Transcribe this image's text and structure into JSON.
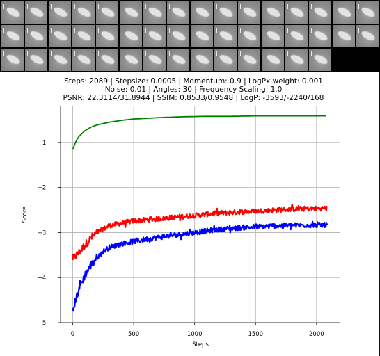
{
  "thumbnail_strip": {
    "rows": 3,
    "columns": 16,
    "count": 46,
    "tile_color": "#8f8f8f",
    "background": "#000000"
  },
  "header": {
    "line1": "Steps: 2089 | Stepsize: 0.0005 | Momentum: 0.9 | LogPx weight: 0.001",
    "line2": "Noise: 0.01 | Angles: 30 | Frequency Scaling: 1.0",
    "line3": "PSNR: 22.3114/31.8944 | SSIM: 0.8533/0.9548 | LogP: -3593/-2240/168"
  },
  "chart_data": {
    "type": "line",
    "title": "",
    "xlabel": "Steps",
    "ylabel": "Score",
    "xlim": [
      -100,
      2195
    ],
    "ylim": [
      -5,
      -0.2
    ],
    "xticks": [
      0,
      500,
      1000,
      1500,
      2000
    ],
    "xtick_labels": [
      "0",
      "500",
      "1000",
      "1500",
      "2000"
    ],
    "yticks": [
      -5,
      -4,
      -3,
      -2,
      -1
    ],
    "ytick_labels": [
      "−5",
      "−4",
      "−3",
      "−2",
      "−1"
    ],
    "grid": true,
    "legend": "none",
    "series": [
      {
        "color": "#008000",
        "noisy": false,
        "x": [
          0,
          25,
          50,
          100,
          150,
          200,
          300,
          400,
          500,
          700,
          900,
          1100,
          1300,
          1500,
          1700,
          1900,
          2089
        ],
        "y": [
          -1.16,
          -0.98,
          -0.87,
          -0.74,
          -0.66,
          -0.61,
          -0.55,
          -0.51,
          -0.48,
          -0.45,
          -0.43,
          -0.42,
          -0.42,
          -0.41,
          -0.41,
          -0.41,
          -0.41
        ]
      },
      {
        "color": "#ff0000",
        "noisy": true,
        "x": [
          0,
          50,
          100,
          150,
          200,
          250,
          300,
          400,
          500,
          600,
          800,
          1000,
          1200,
          1400,
          1600,
          1800,
          2089
        ],
        "y": [
          -3.58,
          -3.45,
          -3.28,
          -3.12,
          -3.0,
          -2.92,
          -2.85,
          -2.79,
          -2.74,
          -2.72,
          -2.67,
          -2.62,
          -2.57,
          -2.54,
          -2.51,
          -2.48,
          -2.46
        ]
      },
      {
        "color": "#0000ff",
        "noisy": true,
        "x": [
          0,
          25,
          50,
          100,
          150,
          200,
          250,
          300,
          400,
          500,
          600,
          800,
          1000,
          1200,
          1400,
          1600,
          1800,
          2089
        ],
        "y": [
          -4.75,
          -4.5,
          -4.25,
          -3.95,
          -3.72,
          -3.55,
          -3.42,
          -3.33,
          -3.25,
          -3.2,
          -3.15,
          -3.07,
          -3.0,
          -2.93,
          -2.89,
          -2.86,
          -2.84,
          -2.83
        ]
      }
    ]
  }
}
